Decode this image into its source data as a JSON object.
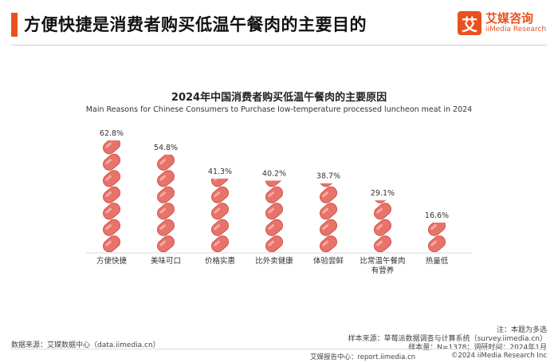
{
  "header": {
    "title": "方便快捷是消费者购买低温午餐肉的主要目的",
    "logo_mark": "艾",
    "logo_cn": "艾媒咨询",
    "logo_en": "iiMedia Research"
  },
  "chart_data": {
    "type": "bar",
    "title": "2024年中国消费者购买低温午餐肉的主要原因",
    "subtitle": "Main Reasons for Chinese Consumers to Purchase low-temperature processed luncheon meat in 2024",
    "categories": [
      "方便快捷",
      "美味可口",
      "价格实惠",
      "比外卖健康",
      "体验尝鲜",
      "比常温午餐肉有营养",
      "热量低"
    ],
    "category_lines": [
      [
        "方便快捷"
      ],
      [
        "美味可口"
      ],
      [
        "价格实惠"
      ],
      [
        "比外卖健康"
      ],
      [
        "体验尝鲜"
      ],
      [
        "比常温午餐肉",
        "有营养"
      ],
      [
        "热量低"
      ]
    ],
    "values": [
      62.8,
      54.8,
      41.3,
      40.2,
      38.7,
      29.1,
      16.6
    ],
    "value_labels": [
      "62.8%",
      "54.8%",
      "41.3%",
      "40.2%",
      "38.7%",
      "29.1%",
      "16.6%"
    ],
    "unit": "%",
    "ylim": [
      0,
      70
    ],
    "grid": false,
    "legend": "none",
    "mark_color": "#e8736a"
  },
  "notes": {
    "data_source": "数据来源：艾媒数据中心（data.iimedia.cn）",
    "multi_choice": "注：本题为多选",
    "sample_source": "样本来源：草莓派数据调查与计算系统（survey.iimedia.cn）",
    "sample_size": "样本量：N=1378；调研时间：2024年1月"
  },
  "footer": {
    "report_center": "艾媒报告中心：report.iimedia.cn",
    "copyright": "©2024  iiMedia Research  Inc"
  }
}
